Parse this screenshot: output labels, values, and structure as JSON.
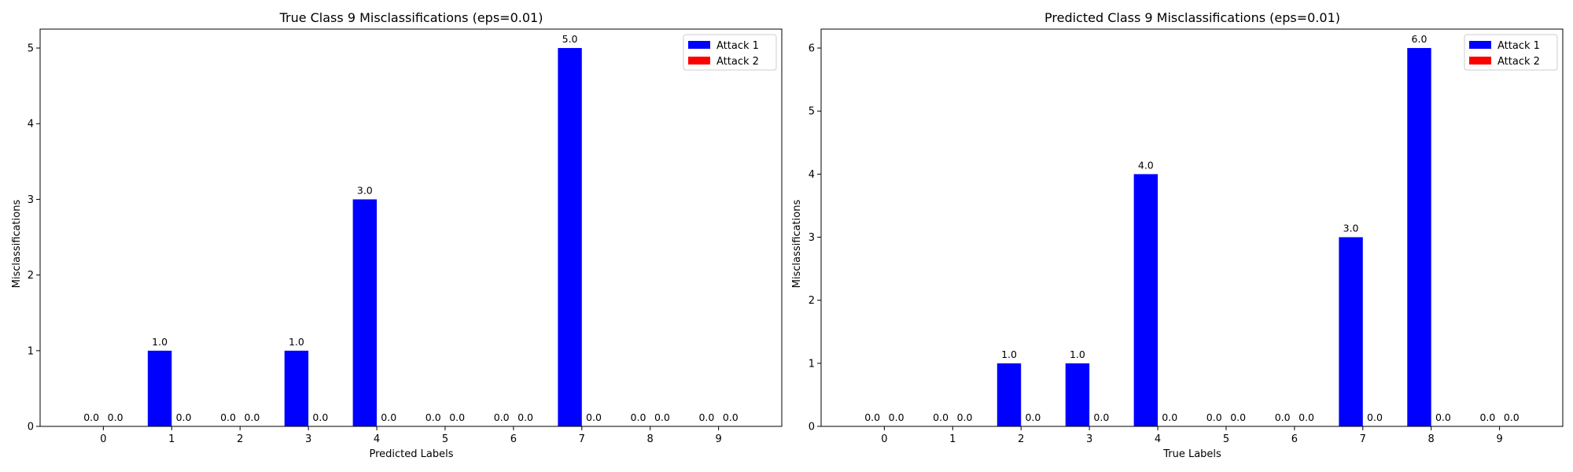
{
  "chart_data": [
    {
      "type": "bar",
      "title": "True Class 9 Misclassifications (eps=0.01)",
      "xlabel": "Predicted Labels",
      "ylabel": "Misclassifications",
      "categories": [
        "0",
        "1",
        "2",
        "3",
        "4",
        "5",
        "6",
        "7",
        "8",
        "9"
      ],
      "series": [
        {
          "name": "Attack 1",
          "color": "#0000ff",
          "values": [
            0,
            1,
            0,
            1,
            3,
            0,
            0,
            5,
            0,
            0
          ]
        },
        {
          "name": "Attack 2",
          "color": "#ff0000",
          "values": [
            0,
            0,
            0,
            0,
            0,
            0,
            0,
            0,
            0,
            0
          ]
        }
      ],
      "data_labels": [
        [
          "0.0",
          "1.0",
          "0.0",
          "1.0",
          "3.0",
          "0.0",
          "0.0",
          "5.0",
          "0.0",
          "0.0"
        ],
        [
          "0.0",
          "0.0",
          "0.0",
          "0.0",
          "0.0",
          "0.0",
          "0.0",
          "0.0",
          "0.0",
          "0.0"
        ]
      ],
      "ylim": [
        0,
        5.25
      ],
      "yticks": [
        "0",
        "1",
        "2",
        "3",
        "4",
        "5"
      ],
      "legend_position": "top-right",
      "grid": false
    },
    {
      "type": "bar",
      "title": "Predicted Class 9 Misclassifications (eps=0.01)",
      "xlabel": "True Labels",
      "ylabel": "Misclassifications",
      "categories": [
        "0",
        "1",
        "2",
        "3",
        "4",
        "5",
        "6",
        "7",
        "8",
        "9"
      ],
      "series": [
        {
          "name": "Attack 1",
          "color": "#0000ff",
          "values": [
            0,
            0,
            1,
            1,
            4,
            0,
            0,
            3,
            6,
            0
          ]
        },
        {
          "name": "Attack 2",
          "color": "#ff0000",
          "values": [
            0,
            0,
            0,
            0,
            0,
            0,
            0,
            0,
            0,
            0
          ]
        }
      ],
      "data_labels": [
        [
          "0.0",
          "0.0",
          "1.0",
          "1.0",
          "4.0",
          "0.0",
          "0.0",
          "3.0",
          "6.0",
          "0.0"
        ],
        [
          "0.0",
          "0.0",
          "0.0",
          "0.0",
          "0.0",
          "0.0",
          "0.0",
          "0.0",
          "0.0",
          "0.0"
        ]
      ],
      "ylim": [
        0,
        6.3
      ],
      "yticks": [
        "0",
        "1",
        "2",
        "3",
        "4",
        "5",
        "6"
      ],
      "legend_position": "top-right",
      "grid": false
    }
  ]
}
